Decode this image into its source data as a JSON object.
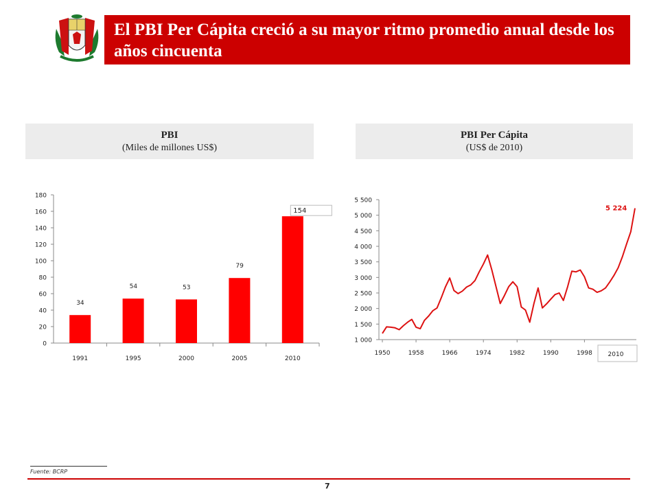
{
  "slide": {
    "title": "El PBI Per Cápita creció a su mayor ritmo promedio anual desde los años cincuenta",
    "footer_source": "Fuente: BCRP",
    "page_number": "7",
    "accent_color": "#cc0000"
  },
  "left_panel": {
    "title": "PBI",
    "subtitle": "(Miles de millones US$)"
  },
  "right_panel": {
    "title": "PBI Per Cápita",
    "subtitle": "(US$ de 2010)"
  },
  "chart_data": [
    {
      "type": "bar",
      "categories": [
        "1991",
        "1995",
        "2000",
        "2005",
        "2010"
      ],
      "values": [
        34,
        54,
        53,
        79,
        154
      ],
      "data_labels": [
        "34",
        "54",
        "53",
        "79",
        "154"
      ],
      "ylim": [
        0,
        180
      ],
      "yticks": [
        0,
        20,
        40,
        60,
        80,
        100,
        120,
        140,
        160,
        180
      ],
      "color": "#ff0000",
      "grid": false
    },
    {
      "type": "line",
      "x": [
        1950,
        1951,
        1952,
        1953,
        1954,
        1955,
        1956,
        1957,
        1958,
        1959,
        1960,
        1961,
        1962,
        1963,
        1964,
        1965,
        1966,
        1967,
        1968,
        1969,
        1970,
        1971,
        1972,
        1973,
        1974,
        1975,
        1976,
        1977,
        1978,
        1979,
        1980,
        1981,
        1982,
        1983,
        1984,
        1985,
        1986,
        1987,
        1988,
        1989,
        1990,
        1991,
        1992,
        1993,
        1994,
        1995,
        1996,
        1997,
        1998,
        1999,
        2000,
        2001,
        2002,
        2003,
        2004,
        2005,
        2006,
        2007,
        2008,
        2009,
        2010
      ],
      "y": [
        1200,
        1410,
        1400,
        1380,
        1320,
        1450,
        1560,
        1650,
        1400,
        1350,
        1620,
        1760,
        1930,
        2020,
        2350,
        2700,
        2980,
        2580,
        2480,
        2560,
        2690,
        2760,
        2900,
        3180,
        3430,
        3720,
        3240,
        2700,
        2160,
        2420,
        2700,
        2860,
        2700,
        2050,
        1950,
        1560,
        2160,
        2660,
        2020,
        2150,
        2300,
        2450,
        2500,
        2260,
        2700,
        3200,
        3180,
        3240,
        3020,
        2660,
        2620,
        2520,
        2570,
        2660,
        2850,
        3060,
        3310,
        3660,
        4070,
        4470,
        5224
      ],
      "highlight_label": "5 224",
      "xticks": [
        "1950",
        "1958",
        "1966",
        "1974",
        "1982",
        "1990",
        "1998",
        "2010"
      ],
      "ylim": [
        1000,
        5500
      ],
      "yticks": [
        "1 000",
        "1 500",
        "2 000",
        "2 500",
        "3 000",
        "3 500",
        "4 000",
        "4 500",
        "5 000",
        "5 500"
      ],
      "color": "#dd1111",
      "grid": false
    }
  ]
}
